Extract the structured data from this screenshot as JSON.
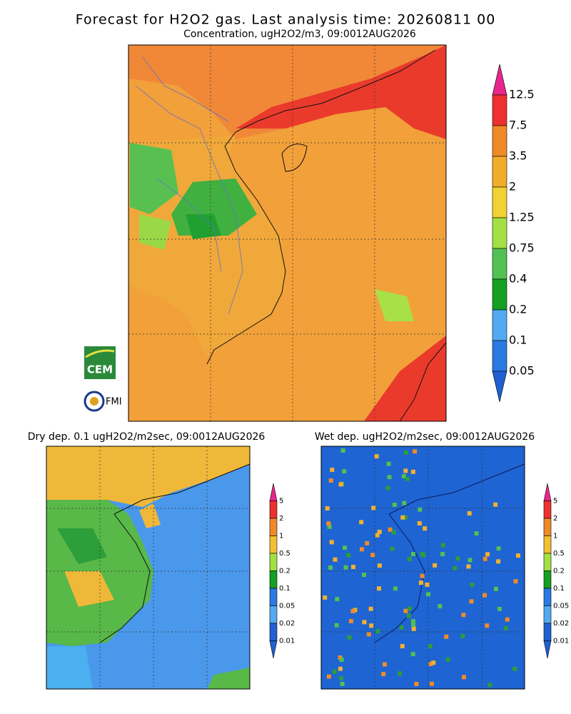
{
  "title": "Forecast for H2O2 gas. Last analysis time: 20260811 00",
  "main_map": {
    "subtitle": "Concentration, ugH2O2/m3, 09:0012AUG2026",
    "colorbar": [
      "12.5",
      "7.5",
      "3.5",
      "2",
      "1.25",
      "0.75",
      "0.4",
      "0.2",
      "0.1",
      "0.05"
    ]
  },
  "logos": {
    "cem": "CEM",
    "fmi": "FMI"
  },
  "dry_map": {
    "title": "Dry dep. 0.1 ugH2O2/m2sec, 09:0012AUG2026",
    "colorbar": [
      "5",
      "2",
      "1",
      "0.5",
      "0.2",
      "0.1",
      "0.05",
      "0.02",
      "0.01"
    ]
  },
  "wet_map": {
    "title": "Wet dep. ugH2O2/m2sec, 09:0012AUG2026",
    "colorbar": [
      "5",
      "2",
      "1",
      "0.5",
      "0.2",
      "0.1",
      "0.05",
      "0.02",
      "0.01"
    ]
  }
}
